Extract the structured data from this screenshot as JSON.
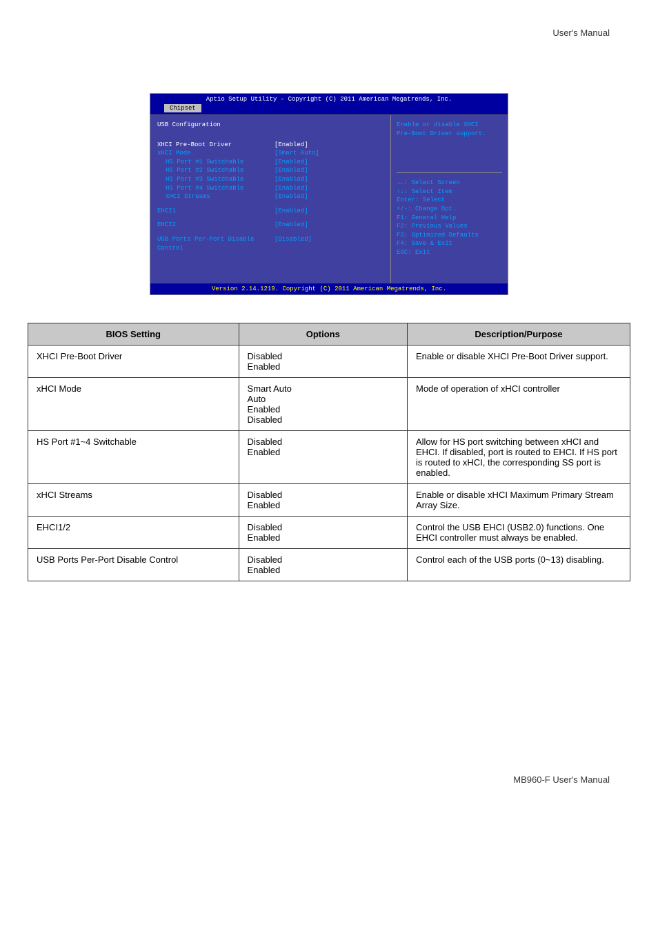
{
  "page_header": "User's Manual",
  "page_footer": "MB960-F User's Manual",
  "bios": {
    "header_line": "Aptio Setup Utility – Copyright (C) 2011 American Megatrends, Inc.",
    "tab": "Chipset",
    "section_title": "USB Configuration",
    "settings": [
      {
        "label": "XHCI Pre-Boot Driver",
        "value": "[Enabled]",
        "selected": true,
        "indent": false
      },
      {
        "label": "xHCI Mode",
        "value": "[Smart Auto]",
        "selected": false,
        "indent": false
      },
      {
        "label": "HS Port #1 Switchable",
        "value": "[Enabled]",
        "selected": false,
        "indent": true
      },
      {
        "label": "HS Port #2 Switchable",
        "value": "[Enabled]",
        "selected": false,
        "indent": true
      },
      {
        "label": "HS Port #3 Switchable",
        "value": "[Enabled]",
        "selected": false,
        "indent": true
      },
      {
        "label": "HS Port #4 Switchable",
        "value": "[Enabled]",
        "selected": false,
        "indent": true
      },
      {
        "label": "XHCI Streams",
        "value": "[Enabled]",
        "selected": false,
        "indent": true
      }
    ],
    "settings2": [
      {
        "label": "EHCI1",
        "value": "[Enabled]",
        "selected": false,
        "indent": false
      }
    ],
    "settings3": [
      {
        "label": "EHCI2",
        "value": "[Enabled]",
        "selected": false,
        "indent": false
      }
    ],
    "settings4": [
      {
        "label": "USB Ports Per-Port Disable Control",
        "value": "[Disabled]",
        "selected": false,
        "indent": false
      }
    ],
    "help_text": [
      "Enable or disable XHCI",
      "Pre-Boot Driver support."
    ],
    "key_help": [
      "→←: Select Screen",
      "↑↓: Select Item",
      "Enter: Select",
      "+/-: Change Opt.",
      "F1: General Help",
      "F2: Previous Values",
      "F3: Optimized Defaults",
      "F4: Save & Exit",
      "ESC: Exit"
    ],
    "footer": "Version 2.14.1219. Copyright (C) 2011 American Megatrends, Inc."
  },
  "table": {
    "headers": [
      "BIOS Setting",
      "Options",
      "Description/Purpose"
    ],
    "rows": [
      {
        "setting": "XHCI Pre-Boot Driver",
        "options": "Disabled\nEnabled",
        "desc": "Enable or disable XHCI Pre-Boot Driver support."
      },
      {
        "setting": "xHCI Mode",
        "options": "Smart Auto\nAuto\nEnabled\nDisabled",
        "desc": "Mode of operation of xHCI controller"
      },
      {
        "setting": "HS Port #1~4 Switchable",
        "options": "Disabled\nEnabled",
        "desc": "Allow for HS port switching between xHCI and EHCI. If disabled, port is routed to EHCI. If HS port is routed to xHCI, the corresponding SS port is enabled."
      },
      {
        "setting": "xHCI Streams",
        "options": "Disabled\nEnabled",
        "desc": "Enable or disable xHCI Maximum Primary Stream Array Size."
      },
      {
        "setting": "EHCI1/2",
        "options": "Disabled\nEnabled",
        "desc": "Control the USB EHCI (USB2.0) functions. One EHCI controller must always be enabled."
      },
      {
        "setting": "USB Ports Per-Port Disable Control",
        "options": "Disabled\nEnabled",
        "desc": "Control each of the USB ports (0~13) disabling."
      }
    ]
  }
}
